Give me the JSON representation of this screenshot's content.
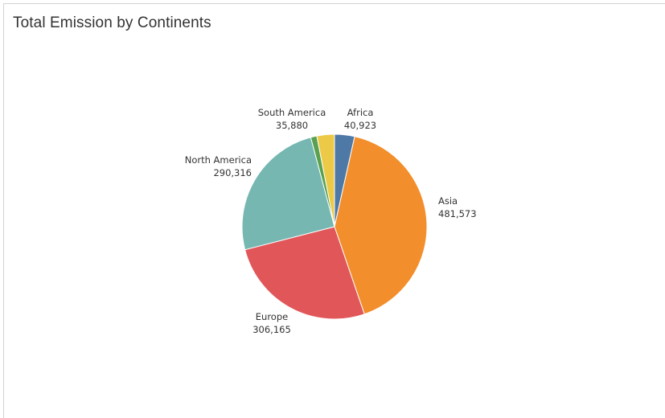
{
  "dashboard": {
    "title": "Total Emission by Continents"
  },
  "chart_data": {
    "type": "pie",
    "title": "Total Emission by Continents",
    "slices": [
      {
        "name": "Africa",
        "value": 40923,
        "label": "40,923",
        "color": "#4e79a7"
      },
      {
        "name": "Asia",
        "value": 481573,
        "label": "481,573",
        "color": "#f28e2b"
      },
      {
        "name": "Europe",
        "value": 306165,
        "label": "306,165",
        "color": "#e15759"
      },
      {
        "name": "North America",
        "value": 290316,
        "label": "290,316",
        "color": "#76b7b2"
      },
      {
        "name": "",
        "value": 12500,
        "label": "",
        "color": "#59a14f"
      },
      {
        "name": "South America",
        "value": 35880,
        "label": "35,880",
        "color": "#edc948"
      }
    ],
    "start_angle": "12 o'clock",
    "direction": "clockwise",
    "legend": "none"
  }
}
